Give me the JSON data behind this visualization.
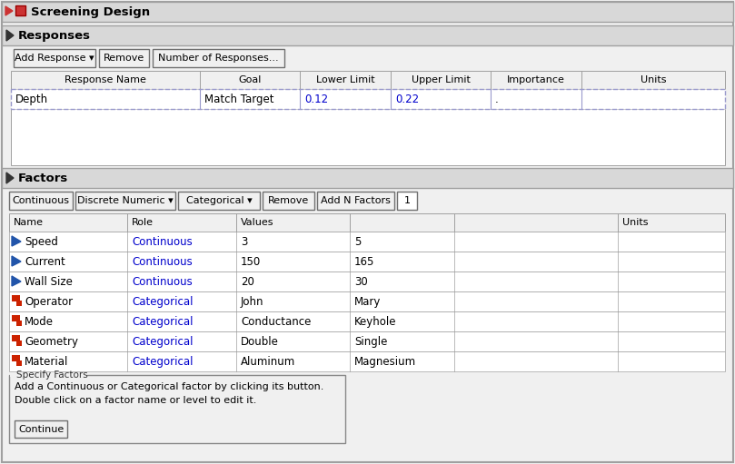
{
  "bg_color": "#f0f0f0",
  "white": "#ffffff",
  "border_color": "#a0a0a0",
  "header_bg": "#d8d8d8",
  "blue_text": "#0000cc",
  "blue_icon": "#2255aa",
  "title": "Screening Design",
  "responses_title": "Responses",
  "factors_title": "Factors",
  "response_buttons": [
    "Add Response ▾",
    "Remove",
    "Number of Responses..."
  ],
  "response_headers": [
    "Response Name",
    "Goal",
    "Lower Limit",
    "Upper Limit",
    "Importance",
    "Units"
  ],
  "response_row": [
    "Depth",
    "Match Target",
    "0.12",
    "0.22",
    ".",
    ""
  ],
  "factor_buttons": [
    "Continuous",
    "Discrete Numeric ▾",
    "Categorical ▾",
    "Remove",
    "Add N Factors",
    "1"
  ],
  "factor_headers": [
    "Name",
    "Role",
    "Values",
    "",
    "Units"
  ],
  "factor_rows": [
    [
      "Speed",
      "Continuous",
      "3",
      "5",
      "continuous"
    ],
    [
      "Current",
      "Continuous",
      "150",
      "165",
      "continuous"
    ],
    [
      "Wall Size",
      "Continuous",
      "20",
      "30",
      "continuous"
    ],
    [
      "Operator",
      "Categorical",
      "John",
      "Mary",
      "categorical"
    ],
    [
      "Mode",
      "Categorical",
      "Conductance",
      "Keyhole",
      "categorical"
    ],
    [
      "Geometry",
      "Categorical",
      "Double",
      "Single",
      "categorical"
    ],
    [
      "Material",
      "Categorical",
      "Aluminum",
      "Magnesium",
      "categorical"
    ]
  ],
  "specify_text": [
    "Add a Continuous or Categorical factor by clicking its button.",
    "Double click on a factor name or level to edit it."
  ],
  "continue_btn": "Continue",
  "rcols": [
    12,
    220,
    330,
    430,
    540,
    640,
    798
  ],
  "fcols": [
    10,
    140,
    260,
    385,
    500,
    680,
    798
  ],
  "fwidths": [
    70,
    110,
    90,
    57,
    85,
    22
  ]
}
